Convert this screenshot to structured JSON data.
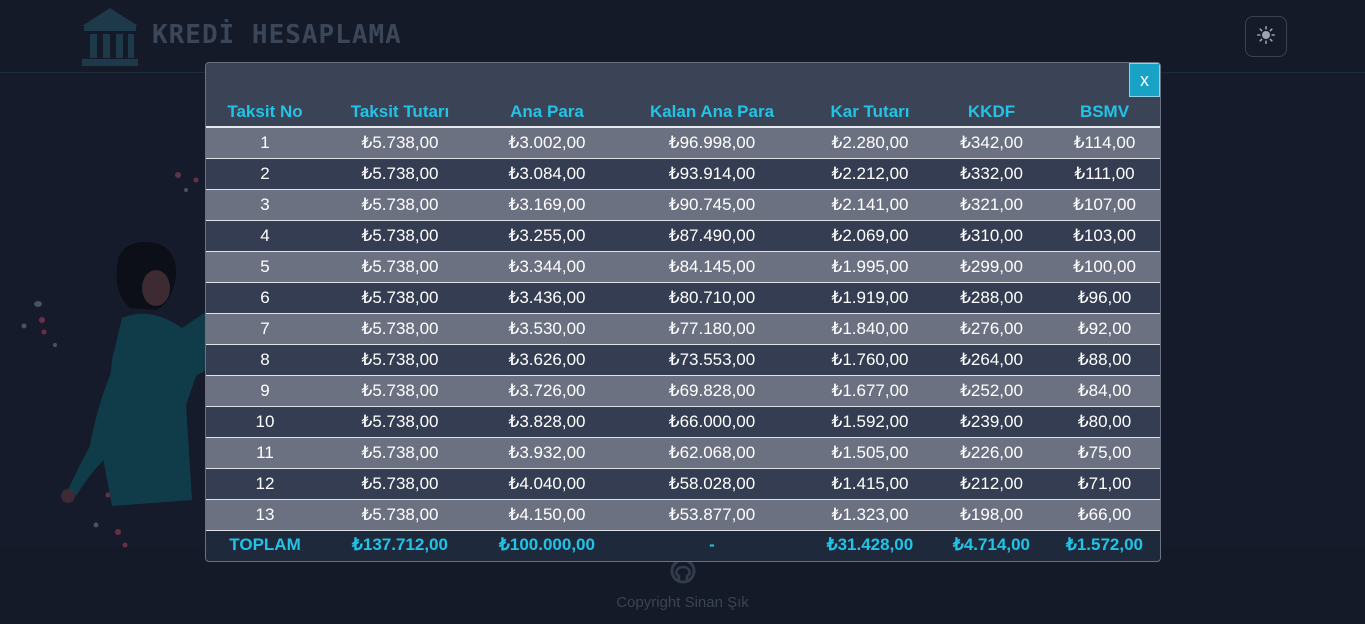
{
  "app": {
    "title": "KREDİ HESAPLAMA",
    "theme_toggle_icon": "sun-icon",
    "brand_icon": "bank-icon"
  },
  "footer": {
    "github_icon": "github-icon",
    "copyright": "Copyright Sinan Şık"
  },
  "modal": {
    "close_label": "x",
    "columns": [
      "Taksit No",
      "Taksit Tutarı",
      "Ana Para",
      "Kalan Ana Para",
      "Kar Tutarı",
      "KKDF",
      "BSMV"
    ],
    "rows": [
      [
        "1",
        "₺5.738,00",
        "₺3.002,00",
        "₺96.998,00",
        "₺2.280,00",
        "₺342,00",
        "₺114,00"
      ],
      [
        "2",
        "₺5.738,00",
        "₺3.084,00",
        "₺93.914,00",
        "₺2.212,00",
        "₺332,00",
        "₺111,00"
      ],
      [
        "3",
        "₺5.738,00",
        "₺3.169,00",
        "₺90.745,00",
        "₺2.141,00",
        "₺321,00",
        "₺107,00"
      ],
      [
        "4",
        "₺5.738,00",
        "₺3.255,00",
        "₺87.490,00",
        "₺2.069,00",
        "₺310,00",
        "₺103,00"
      ],
      [
        "5",
        "₺5.738,00",
        "₺3.344,00",
        "₺84.145,00",
        "₺1.995,00",
        "₺299,00",
        "₺100,00"
      ],
      [
        "6",
        "₺5.738,00",
        "₺3.436,00",
        "₺80.710,00",
        "₺1.919,00",
        "₺288,00",
        "₺96,00"
      ],
      [
        "7",
        "₺5.738,00",
        "₺3.530,00",
        "₺77.180,00",
        "₺1.840,00",
        "₺276,00",
        "₺92,00"
      ],
      [
        "8",
        "₺5.738,00",
        "₺3.626,00",
        "₺73.553,00",
        "₺1.760,00",
        "₺264,00",
        "₺88,00"
      ],
      [
        "9",
        "₺5.738,00",
        "₺3.726,00",
        "₺69.828,00",
        "₺1.677,00",
        "₺252,00",
        "₺84,00"
      ],
      [
        "10",
        "₺5.738,00",
        "₺3.828,00",
        "₺66.000,00",
        "₺1.592,00",
        "₺239,00",
        "₺80,00"
      ],
      [
        "11",
        "₺5.738,00",
        "₺3.932,00",
        "₺62.068,00",
        "₺1.505,00",
        "₺226,00",
        "₺75,00"
      ],
      [
        "12",
        "₺5.738,00",
        "₺4.040,00",
        "₺58.028,00",
        "₺1.415,00",
        "₺212,00",
        "₺71,00"
      ],
      [
        "13",
        "₺5.738,00",
        "₺4.150,00",
        "₺53.877,00",
        "₺1.323,00",
        "₺198,00",
        "₺66,00"
      ]
    ],
    "totals": [
      "TOPLAM",
      "₺137.712,00",
      "₺100.000,00",
      "-",
      "₺31.428,00",
      "₺4.714,00",
      "₺1.572,00"
    ]
  },
  "colors": {
    "accent": "#22c3e6",
    "close_button": "#17a2c6",
    "row_light": "#6b7180",
    "row_dark": "#343d51",
    "page_background": "#161b2b"
  }
}
